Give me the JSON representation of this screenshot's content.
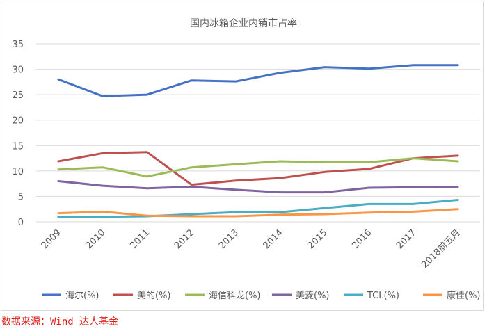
{
  "chart_data": {
    "type": "line",
    "title": "国内冰箱企业内销市占率",
    "categories": [
      "2009",
      "2010",
      "2011",
      "2012",
      "2013",
      "2014",
      "2015",
      "2016",
      "2017",
      "2018前五月"
    ],
    "ylim": [
      0,
      35
    ],
    "yticks": [
      0,
      5,
      10,
      15,
      20,
      25,
      30,
      35
    ],
    "grid": true,
    "legend_position": "bottom",
    "series": [
      {
        "name": "海尔(%)",
        "color": "#4472c4",
        "values": [
          28.0,
          24.7,
          25.0,
          27.8,
          27.6,
          29.3,
          30.4,
          30.1,
          30.8,
          30.8
        ]
      },
      {
        "name": "美的(%)",
        "color": "#c0504d",
        "values": [
          11.9,
          13.5,
          13.7,
          7.3,
          8.1,
          8.6,
          9.8,
          10.4,
          12.5,
          13.0
        ]
      },
      {
        "name": "海信科龙(%)",
        "color": "#9bbb59",
        "values": [
          10.3,
          10.7,
          8.9,
          10.7,
          11.3,
          11.9,
          11.7,
          11.7,
          12.5,
          11.9
        ]
      },
      {
        "name": "美菱(%)",
        "color": "#8064a2",
        "values": [
          8.0,
          7.1,
          6.6,
          6.9,
          6.3,
          5.8,
          5.8,
          6.7,
          6.8,
          6.9
        ]
      },
      {
        "name": "TCL(%)",
        "color": "#4bacc6",
        "values": [
          1.0,
          1.0,
          1.1,
          1.5,
          1.9,
          1.9,
          2.7,
          3.5,
          3.5,
          4.3
        ]
      },
      {
        "name": "康佳(%)",
        "color": "#f79646",
        "values": [
          1.7,
          2.0,
          1.2,
          1.1,
          1.1,
          1.4,
          1.5,
          1.8,
          2.0,
          2.5
        ]
      }
    ]
  },
  "source_note": "数据来源：Wind 达人基金"
}
